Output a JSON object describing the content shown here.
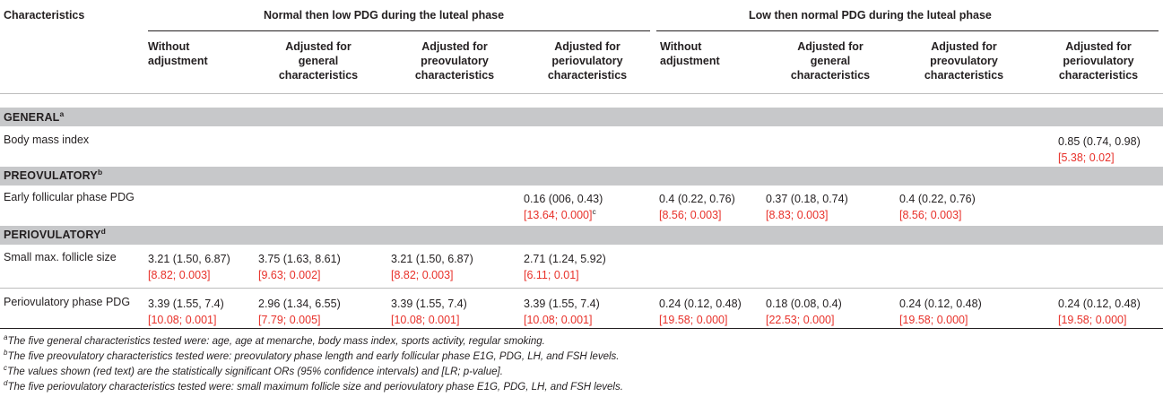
{
  "header": {
    "characteristics": "Characteristics",
    "group1": "Normal then low PDG during the luteal phase",
    "group2": "Low then normal PDG during the luteal phase",
    "cols": [
      [
        "Without",
        "adjustment"
      ],
      [
        "Adjusted for",
        "general",
        "characteristics"
      ],
      [
        "Adjusted for",
        "preovulatory",
        "characteristics"
      ],
      [
        "Adjusted for",
        "periovulatory",
        "characteristics"
      ]
    ]
  },
  "sections": {
    "general": {
      "label": "GENERAL",
      "sup": "a"
    },
    "preovulatory": {
      "label": "PREOVULATORY",
      "sup": "b"
    },
    "periovulatory": {
      "label": "PERIOVULATORY",
      "sup": "d"
    }
  },
  "rows": {
    "bmi": {
      "label": "Body mass index",
      "g2_adj_peri": {
        "or": "0.85 (0.74, 0.98)",
        "lr": "[5.38; 0.02]"
      }
    },
    "early_pdg": {
      "label": "Early follicular phase PDG",
      "g1_adj_peri": {
        "or": "0.16 (006, 0.43)",
        "lr": "[13.64; 0.000]",
        "sup": "c"
      },
      "g2_without": {
        "or": "0.4 (0.22, 0.76)",
        "lr": "[8.56; 0.003]"
      },
      "g2_adj_gen": {
        "or": "0.37 (0.18, 0.74)",
        "lr": "[8.83; 0.003]"
      },
      "g2_adj_pre": {
        "or": "0.4 (0.22, 0.76)",
        "lr": "[8.56; 0.003]"
      }
    },
    "follicle": {
      "label": "Small max. follicle size",
      "g1_without": {
        "or": "3.21 (1.50, 6.87)",
        "lr": "[8.82; 0.003]"
      },
      "g1_adj_gen": {
        "or": "3.75 (1.63, 8.61)",
        "lr": "[9.63; 0.002]"
      },
      "g1_adj_pre": {
        "or": "3.21 (1.50, 6.87)",
        "lr": "[8.82; 0.003]"
      },
      "g1_adj_peri": {
        "or": "2.71 (1.24, 5.92)",
        "lr": "[6.11; 0.01]"
      }
    },
    "peri_pdg": {
      "label": "Periovulatory phase PDG",
      "g1_without": {
        "or": "3.39 (1.55, 7.4)",
        "lr": "[10.08; 0.001]"
      },
      "g1_adj_gen": {
        "or": "2.96 (1.34, 6.55)",
        "lr": "[7.79; 0.005]"
      },
      "g1_adj_pre": {
        "or": "3.39 (1.55, 7.4)",
        "lr": "[10.08; 0.001]"
      },
      "g1_adj_peri": {
        "or": "3.39 (1.55, 7.4)",
        "lr": "[10.08; 0.001]"
      },
      "g2_without": {
        "or": "0.24 (0.12, 0.48)",
        "lr": "[19.58; 0.000]"
      },
      "g2_adj_gen": {
        "or": "0.18 (0.08, 0.4)",
        "lr": "[22.53; 0.000]"
      },
      "g2_adj_pre": {
        "or": "0.24 (0.12, 0.48)",
        "lr": "[19.58; 0.000]"
      },
      "g2_adj_peri": {
        "or": "0.24 (0.12, 0.48)",
        "lr": "[19.58; 0.000]"
      }
    }
  },
  "footnotes": [
    {
      "sup": "a",
      "text": "The five general characteristics tested were: age, age at menarche, body mass index, sports activity, regular smoking."
    },
    {
      "sup": "b",
      "text": "The five preovulatory characteristics tested were: preovulatory phase length and early follicular phase E1G, PDG, LH, and FSH levels."
    },
    {
      "sup": "c",
      "text": "The values shown (red text) are the statistically significant ORs (95% confidence intervals) and [LR; p-value]."
    },
    {
      "sup": "d",
      "text": "The five periovulatory characteristics tested were: small maximum follicle size and periovulatory phase E1G, PDG, LH, and FSH levels."
    }
  ],
  "colors": {
    "value_red": "#e8312a",
    "section_band": "#c7c8ca",
    "text": "#231f20"
  }
}
